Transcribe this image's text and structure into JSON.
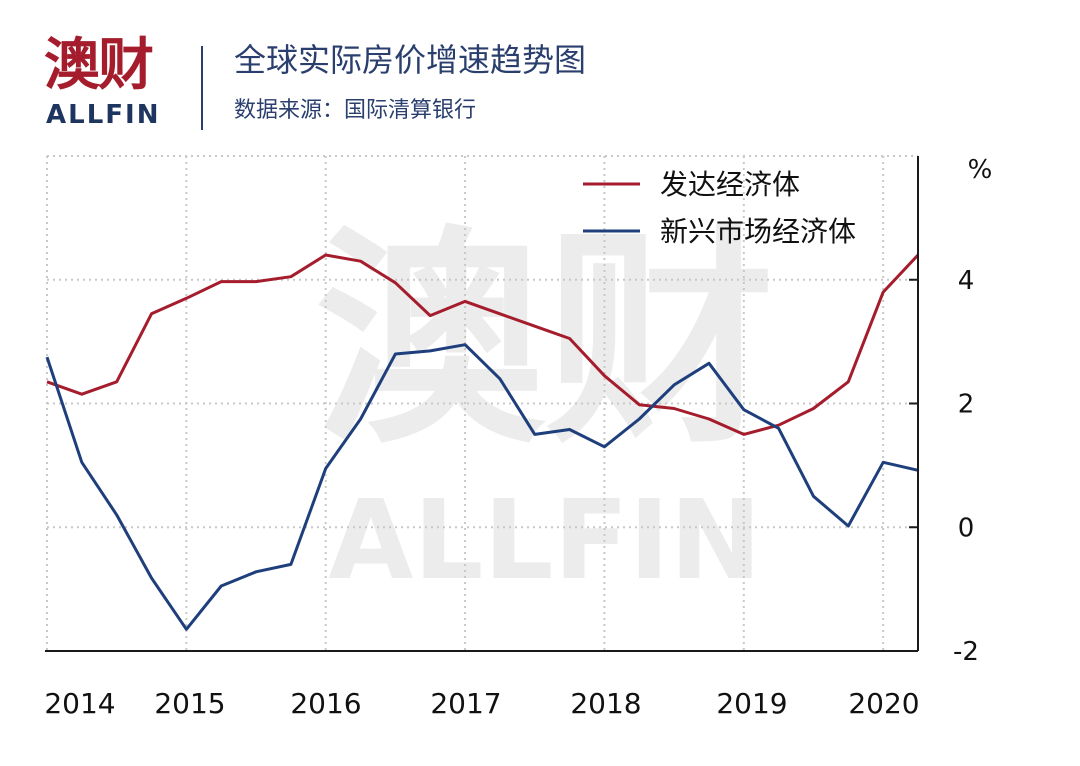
{
  "header": {
    "logo_cn": "澳财",
    "logo_en": "ALLFIN",
    "title": "全球实际房价增速趋势图",
    "source": "数据来源：国际清算银行"
  },
  "watermark": {
    "cn": "澳财",
    "en": "ALLFIN"
  },
  "colors": {
    "developed": "#a51d2d",
    "emerging": "#1e3f7c",
    "axis": "#1a1a1a",
    "grid": "#c8c8c8"
  },
  "chart_data": {
    "type": "line",
    "title": "全球实际房价增速趋势图",
    "unit": "%",
    "x_ticks": [
      2014,
      2015,
      2016,
      2017,
      2018,
      2019,
      2020
    ],
    "x_tick_labels": [
      "2014",
      "2015",
      "2016",
      "2017",
      "2018",
      "2019",
      "2020"
    ],
    "xlim": [
      2014,
      2020.25
    ],
    "ylim": [
      -2,
      6
    ],
    "y_ticks": [
      -2,
      0,
      2,
      4
    ],
    "y_tick_labels": [
      "-2",
      "0",
      "2",
      "4"
    ],
    "grid": true,
    "y_axis_side": "right",
    "legend_position": "top-right",
    "series": [
      {
        "name": "发达经济体",
        "color": "#a51d2d",
        "x": [
          2014.0,
          2014.25,
          2014.5,
          2014.75,
          2015.0,
          2015.25,
          2015.5,
          2015.75,
          2016.0,
          2016.25,
          2016.5,
          2016.75,
          2017.0,
          2017.25,
          2017.5,
          2017.75,
          2018.0,
          2018.25,
          2018.5,
          2018.75,
          2019.0,
          2019.25,
          2019.5,
          2019.75,
          2020.0,
          2020.25
        ],
        "y": [
          2.35,
          2.15,
          2.35,
          3.45,
          3.7,
          3.97,
          3.97,
          4.05,
          4.4,
          4.3,
          3.95,
          3.42,
          3.65,
          3.45,
          3.25,
          3.05,
          2.45,
          1.98,
          1.92,
          1.75,
          1.5,
          1.65,
          1.92,
          2.35,
          3.8,
          4.4
        ]
      },
      {
        "name": "新兴市场经济体",
        "color": "#1e3f7c",
        "x": [
          2014.0,
          2014.25,
          2014.5,
          2014.75,
          2015.0,
          2015.25,
          2015.5,
          2015.75,
          2016.0,
          2016.25,
          2016.5,
          2016.75,
          2017.0,
          2017.25,
          2017.5,
          2017.75,
          2018.0,
          2018.25,
          2018.5,
          2018.75,
          2019.0,
          2019.25,
          2019.5,
          2019.75,
          2020.0,
          2020.25
        ],
        "y": [
          2.75,
          1.05,
          0.2,
          -0.82,
          -1.65,
          -0.95,
          -0.72,
          -0.6,
          0.95,
          1.75,
          2.8,
          2.85,
          2.95,
          2.4,
          1.5,
          1.58,
          1.3,
          1.75,
          2.3,
          2.65,
          1.9,
          1.6,
          0.5,
          0.02,
          1.05,
          0.92
        ]
      }
    ]
  }
}
